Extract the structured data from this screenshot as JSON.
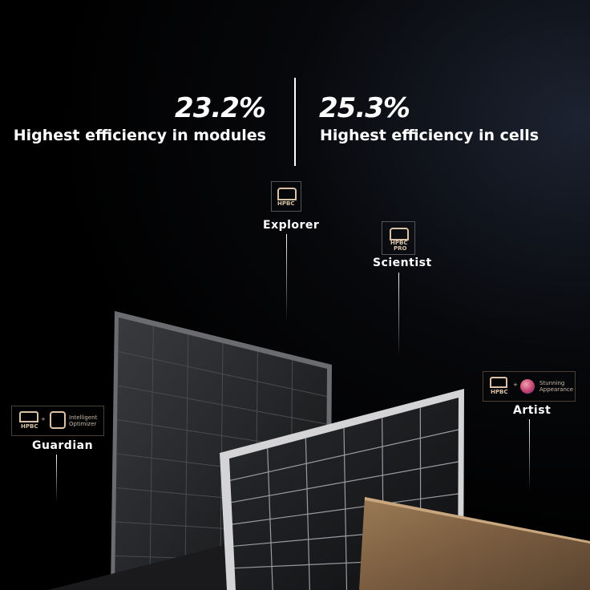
{
  "stats": [
    {
      "value": "23.2%",
      "caption": "Highest efficiency in modules"
    },
    {
      "value": "25.3%",
      "caption": "Highest efficiency in cells"
    }
  ],
  "products": {
    "explorer": {
      "name": "Explorer",
      "badge": "HPBC"
    },
    "scientist": {
      "name": "Scientist",
      "badge": "HPBC",
      "badge_sub": "PRO"
    },
    "guardian": {
      "name": "Guardian",
      "badge": "HPBC",
      "extra": "Intelligent Optimizer",
      "extra_line1": "Intelligent",
      "extra_line2": "Optimizer"
    },
    "artist": {
      "name": "Artist",
      "badge": "HPBC",
      "extra": "Stunning Appearance",
      "extra_line1": "Stunning",
      "extra_line2": "Appearance"
    }
  },
  "colors": {
    "badge": "#d9c2a5",
    "gold_panel": "#8a6a48",
    "silver_frame": "#c8c8c8"
  }
}
